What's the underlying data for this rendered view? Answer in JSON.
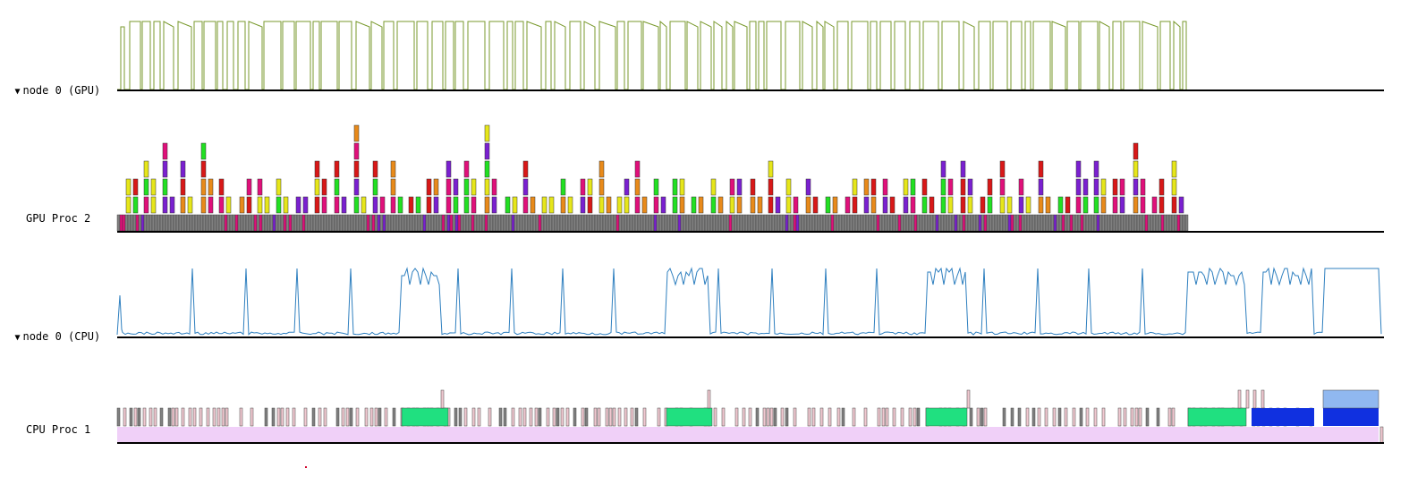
{
  "rows": {
    "gpu_node": {
      "toggle": "▼",
      "label": "node 0 (GPU)"
    },
    "gpu_proc": {
      "label": "GPU Proc 2"
    },
    "cpu_node": {
      "toggle": "▼",
      "label": "node 0 (CPU)"
    },
    "cpu_proc": {
      "label": "CPU Proc 1"
    }
  },
  "colors": {
    "gpu_util_line": "#7a9a2e",
    "cpu_util_line": "#2e7fbf",
    "task_grey": "#808080",
    "task_magenta": "#e0107a",
    "task_green": "#22e022",
    "task_purple": "#7a20d0",
    "task_orange": "#e88a1a",
    "task_red": "#d81818",
    "task_yellow": "#e6e61a",
    "cpu_task_pink": "#f0c8d0",
    "cpu_task_green": "#20e080",
    "cpu_task_blue": "#1030e0",
    "cpu_task_lightblue": "#90b8f0",
    "cpu_idle_lavender": "#f0d0f8"
  }
}
